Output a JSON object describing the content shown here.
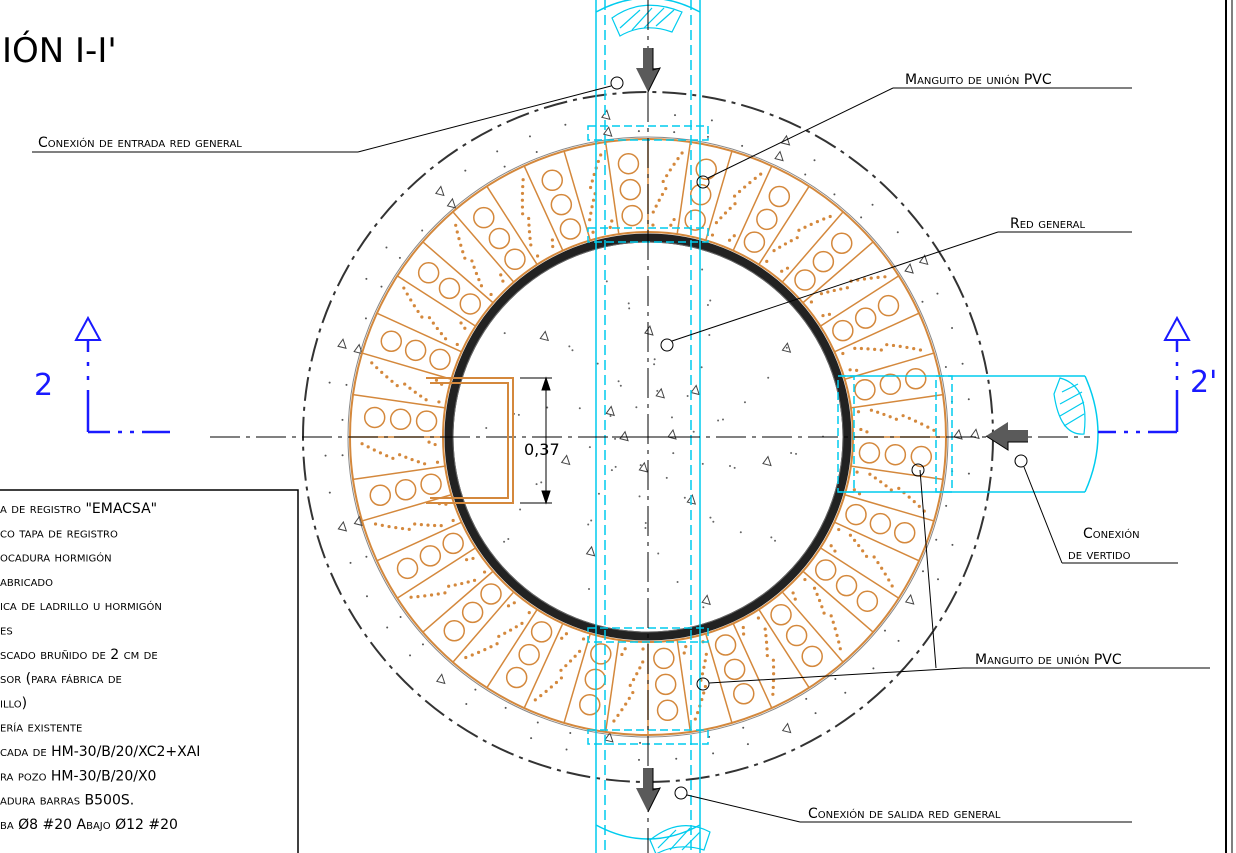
{
  "section_title": "IÓN I-I'",
  "callouts": {
    "entrada": "Conexión de entrada red general",
    "manguito_top": "Manguito de unión PVC",
    "red_general": "Red general",
    "vertido_line1": "Conexión",
    "vertido_line2": "de vertido",
    "manguito_bottom": "Manguito de unión PVC",
    "salida": "Conexión de salida red general"
  },
  "dimension": "0,37",
  "section_marks": {
    "left": "2",
    "right": "2'"
  },
  "legend": [
    "a de registro \"EMACSA\"",
    "co tapa de registro",
    "ocadura hormigón",
    "abricado",
    "ica de ladrillo u hormigón",
    "es",
    "scado bruñido de 2 cm de",
    "sor (para fábrica de",
    "illo)",
    "ería existente",
    "cada de HM-30/B/20/XC2+XAI",
    "ra pozo HM-30/B/20/X0",
    "adura barras B500S.",
    "ba Ø8 #20 Abajo Ø12 #20"
  ],
  "colors": {
    "brick": "#d4883c",
    "pipe": "#00ccee",
    "section_mark": "#1a1aff",
    "arrow": "#5a5a5a"
  }
}
